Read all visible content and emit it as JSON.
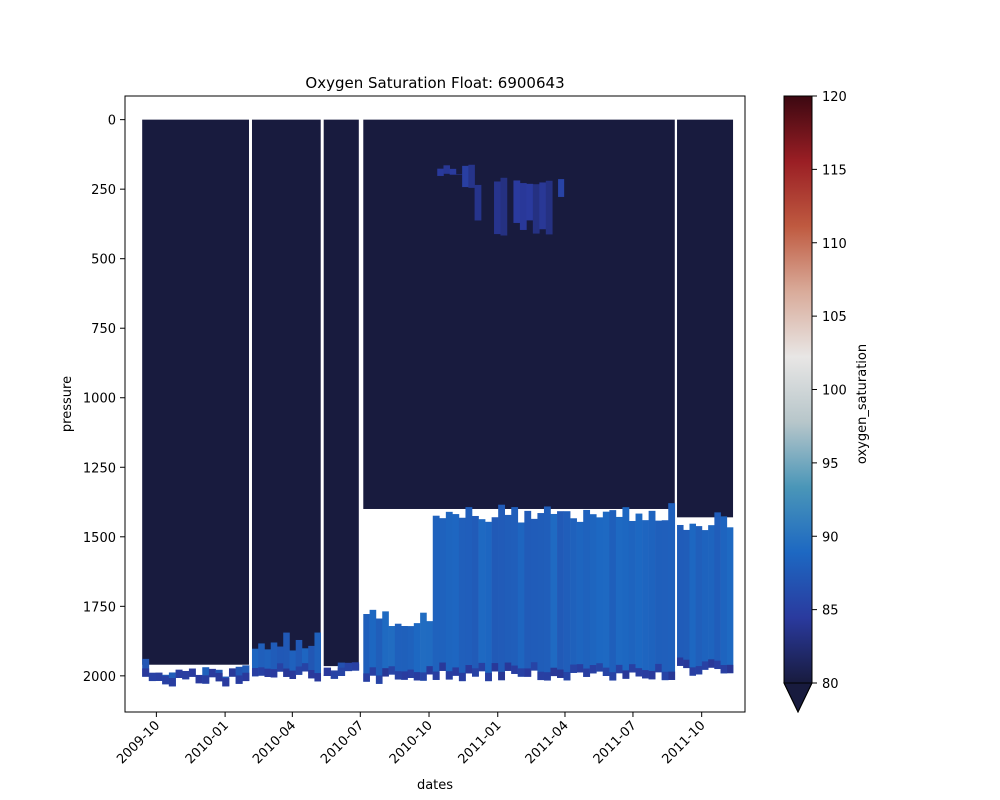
{
  "chart_data": {
    "type": "heatmap",
    "title": "Oxygen Saturation Float: 6900643",
    "xlabel": "dates",
    "ylabel": "pressure",
    "x_ticks": [
      "2009-10",
      "2010-01",
      "2010-04",
      "2010-07",
      "2010-10",
      "2011-01",
      "2011-04",
      "2011-07",
      "2011-10"
    ],
    "y_ticks": [
      0,
      250,
      500,
      750,
      1000,
      1250,
      1500,
      1750,
      2000
    ],
    "xlim": [
      "2009-08-20",
      "2011-11-28"
    ],
    "ylim": [
      2130,
      -85
    ],
    "y_inverted": true,
    "colorbar": {
      "label": "oxygen_saturation",
      "range": [
        80,
        120
      ],
      "ticks": [
        80,
        85,
        90,
        95,
        100,
        105,
        110,
        115,
        120
      ],
      "extend": "min",
      "colormap": [
        "#181b3e",
        "#2a3a9e",
        "#1d68c2",
        "#4a96b8",
        "#b7c6ca",
        "#e8e6e5",
        "#d9ab9a",
        "#bf5a40",
        "#9a1e24",
        "#3c0811"
      ]
    },
    "background_value": "<80",
    "profile_segments": [
      {
        "start": "2009-09-12",
        "end": "2010-02-02",
        "bottom": 1960
      },
      {
        "start": "2010-02-06",
        "end": "2010-05-09",
        "bottom": 1960
      },
      {
        "start": "2010-05-13",
        "end": "2010-06-29",
        "bottom": 1965
      },
      {
        "start": "2010-07-05",
        "end": "2011-08-26",
        "bottom": 1400
      },
      {
        "start": "2011-08-29",
        "end": "2011-11-12",
        "bottom": 1430
      }
    ],
    "low_values": [
      {
        "start": "2009-09-12",
        "end": "2010-02-02",
        "top": 1960,
        "bottom": 2040,
        "value": 87.5
      },
      {
        "start": "2010-02-06",
        "end": "2010-05-09",
        "top": 1860,
        "bottom": 2020,
        "value": 88
      },
      {
        "start": "2010-05-13",
        "end": "2010-06-29",
        "top": 1965,
        "bottom": 2020,
        "value": 87.5
      },
      {
        "start": "2010-07-05",
        "end": "2010-10-06",
        "top": 1780,
        "bottom": 2030,
        "value": 88.5
      },
      {
        "start": "2010-10-06",
        "end": "2011-08-26",
        "top": 1400,
        "bottom": 2020,
        "value": 88.3
      },
      {
        "start": "2011-08-29",
        "end": "2011-11-12",
        "top": 1430,
        "bottom": 2000,
        "value": 88.3
      }
    ],
    "upper_patch": [
      {
        "start": "2010-10-12",
        "end": "2010-12-01",
        "top": 160,
        "bottom": 250,
        "value": 84
      },
      {
        "start": "2010-12-01",
        "end": "2011-03-15",
        "top": 200,
        "bottom": 420,
        "value": 84
      },
      {
        "start": "2011-03-15",
        "end": "2011-04-15",
        "top": 200,
        "bottom": 290,
        "value": 85
      }
    ]
  }
}
